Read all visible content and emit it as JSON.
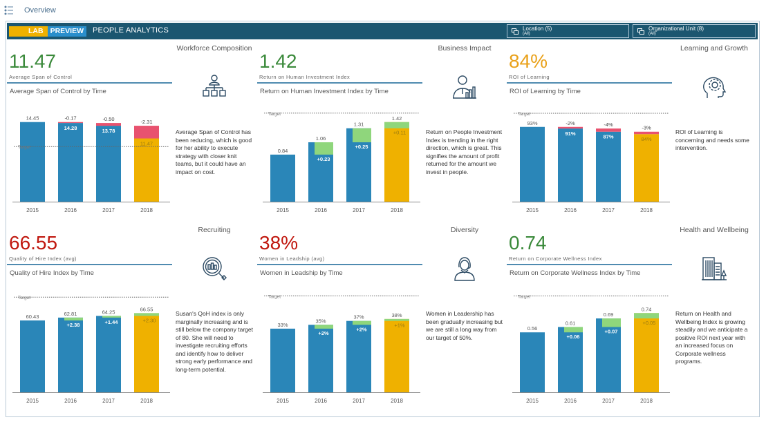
{
  "nav": {
    "breadcrumb": "Overview",
    "menu_icon": "list-icon"
  },
  "header": {
    "logo_lab": "LAB",
    "logo_preview": "PREVIEW",
    "title": "PEOPLE ANALYTICS",
    "filters": [
      {
        "label": "Location (5)",
        "sub": "(All)",
        "icon": "filter-icon"
      },
      {
        "label": "Organizational Unit (8)",
        "sub": "(All)",
        "icon": "filter-icon"
      }
    ]
  },
  "colors": {
    "bar": "#2a86b8",
    "increase": "#8fd67c",
    "decrease": "#e8526f",
    "current": "#efb100",
    "header": "#1b5670"
  },
  "panels": [
    {
      "kpi": "11.47",
      "kpi_color": "#3b8a3b",
      "kpi_label": "Average Span of Control",
      "chart_title": "Average Span of Control by Time",
      "category": "Workforce Composition",
      "icon": "org-chart-icon",
      "description": "Average Span of Control has been reducing, which is good for her ability to execute strategy with closer knit teams, but it could have an impact on cost."
    },
    {
      "kpi": "1.42",
      "kpi_color": "#3b8a3b",
      "kpi_label": "Return on Human Investment Index",
      "chart_title": "Return on Human Investment Index by Time",
      "category": "Business Impact",
      "icon": "business-person-chart-icon",
      "description": "Return on People Investment Index is trending in the right direction, which is great.  This signifies the amount of profit returned for the amount we invest in people."
    },
    {
      "kpi": "84%",
      "kpi_color": "#e9a11a",
      "kpi_label": "ROI of Learning",
      "chart_title": "ROI of Learning by Time",
      "category": "Learning and Growth",
      "icon": "head-gear-icon",
      "description": "ROI of Learning is concerning and needs some intervention."
    },
    {
      "kpi": "66.55",
      "kpi_color": "#c0170e",
      "kpi_label": "Quality of Hire Index (avg)",
      "chart_title": "Quality of Hire Index by Time",
      "category": "Recruiting",
      "icon": "magnifier-chart-icon",
      "description": "Susan's QoH index is only marginally increasing and is still below the company target of 80.  She will need to investigate recruiting efforts and identify how to deliver strong early performance and long-term potential."
    },
    {
      "kpi": "38%",
      "kpi_color": "#c0170e",
      "kpi_label": "Women in Leadship (avg)",
      "chart_title": "Women in Leadship by Time",
      "category": "Diversity",
      "icon": "woman-icon",
      "description": "Women in Leadership has been gradually increasing but we are still a long way from our target of 50%."
    },
    {
      "kpi": "0.74",
      "kpi_color": "#3b8a3b",
      "kpi_label": "Return on Corporate Wellness Index",
      "chart_title": "Return on Corporate Wellness Index by Time",
      "category": "Health and Wellbeing",
      "icon": "buildings-tree-icon",
      "description": "Return on Health and Wellbeing Index is growing steadily and we anticipate a positive ROI next year with an increased focus on Corporate wellness programs."
    }
  ],
  "chart_data": [
    {
      "type": "bar",
      "title": "Average Span of Control by Time",
      "categories": [
        "2015",
        "2016",
        "2017",
        "2018"
      ],
      "values": [
        14.45,
        14.28,
        13.78,
        11.47
      ],
      "value_labels": [
        "14.45",
        "14.28",
        "13.78",
        "11.47"
      ],
      "delta_labels": [
        "",
        "-0.17",
        "-0.50",
        "-2.31"
      ],
      "target": 10,
      "target_label": "Target",
      "ylim": [
        0,
        17.8
      ]
    },
    {
      "type": "bar",
      "title": "Return on Human Investment Index by Time",
      "categories": [
        "2015",
        "2016",
        "2017",
        "2018"
      ],
      "values": [
        0.84,
        1.06,
        1.31,
        1.42
      ],
      "value_labels": [
        "0.84",
        "1.06",
        "1.31",
        "1.42"
      ],
      "delta_labels": [
        "",
        "+0.23",
        "+0.25",
        "+0.11"
      ],
      "target": 1.58,
      "target_label": "Target",
      "ylim": [
        0,
        1.75
      ]
    },
    {
      "type": "bar",
      "title": "ROI of Learning by Time",
      "categories": [
        "2015",
        "2016",
        "2017",
        "2018"
      ],
      "values": [
        93,
        91,
        87,
        84
      ],
      "value_labels": [
        "93%",
        "91%",
        "87%",
        "84%"
      ],
      "delta_labels": [
        "",
        "-2%",
        "-4%",
        "-3%"
      ],
      "target": 110,
      "target_label": "Target",
      "ylim": [
        0,
        122
      ]
    },
    {
      "type": "bar",
      "title": "Quality of Hire Index by Time",
      "categories": [
        "2015",
        "2016",
        "2017",
        "2018"
      ],
      "values": [
        60.43,
        62.81,
        64.25,
        66.55
      ],
      "value_labels": [
        "60.43",
        "62.81",
        "64.25",
        "66.55"
      ],
      "delta_labels": [
        "",
        "+2.38",
        "+1.44",
        "+2.30"
      ],
      "target": 80,
      "target_label": "Target",
      "ylim": [
        0,
        90
      ]
    },
    {
      "type": "bar",
      "title": "Women in Leadship by Time",
      "categories": [
        "2015",
        "2016",
        "2017",
        "2018"
      ],
      "values": [
        33,
        35,
        37,
        38
      ],
      "value_labels": [
        "33%",
        "35%",
        "37%",
        "38%"
      ],
      "delta_labels": [
        "",
        "+2%",
        "+2%",
        "+1%"
      ],
      "target": 50,
      "target_label": "Target",
      "ylim": [
        0,
        55.5
      ]
    },
    {
      "type": "bar",
      "title": "Return on Corporate Wellness Index by Time",
      "categories": [
        "2015",
        "2016",
        "2017",
        "2018"
      ],
      "values": [
        0.56,
        0.61,
        0.69,
        0.74
      ],
      "value_labels": [
        "0.56",
        "0.61",
        "0.69",
        "0.74"
      ],
      "delta_labels": [
        "",
        "+0.06",
        "+0.07",
        "+0.05"
      ],
      "target": 0.9,
      "target_label": "Target",
      "ylim": [
        0,
        1.0
      ]
    }
  ]
}
